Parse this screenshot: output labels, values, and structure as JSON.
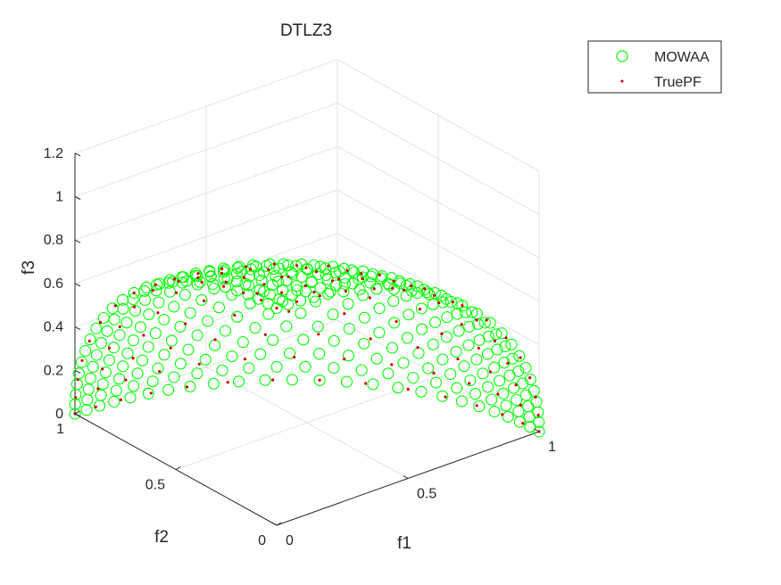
{
  "chart_data": {
    "type": "scatter3d",
    "title": "DTLZ3",
    "xlabel": "f1",
    "ylabel": "f2",
    "zlabel": "f3",
    "xlim": [
      0,
      1
    ],
    "ylim": [
      0,
      1
    ],
    "zlim": [
      0,
      1.2
    ],
    "x_ticks": [
      "0",
      "0.5",
      "1"
    ],
    "y_ticks": [
      "0",
      "0.5",
      "1"
    ],
    "z_ticks": [
      "0",
      "0.2",
      "0.4",
      "0.6",
      "0.8",
      "1",
      "1.2"
    ],
    "grid": true,
    "view": {
      "azimuth": 135,
      "elevation": 30
    },
    "legend": {
      "placement": "top-right",
      "entries": [
        {
          "label": "MOWAA",
          "marker": "circle-open",
          "color": "#00ff00"
        },
        {
          "label": "TruePF",
          "marker": "dot",
          "color": "#cc0000"
        }
      ]
    },
    "series": [
      {
        "name": "MOWAA",
        "description": "Points on the unit-sphere octant f1^2+f2^2+f3^2=1 (sampled on a lattice, 24 divisions)",
        "surface": "f1^2+f2^2+f3^2=1",
        "divisions": 24,
        "color": "#00ff00"
      },
      {
        "name": "TruePF",
        "description": "True Pareto front, unit-sphere octant f1^2+f2^2+f3^2=1 (sampled on a lattice, 14 divisions)",
        "surface": "f1^2+f2^2+f3^2=1",
        "divisions": 14,
        "color": "#cc0000"
      }
    ]
  }
}
